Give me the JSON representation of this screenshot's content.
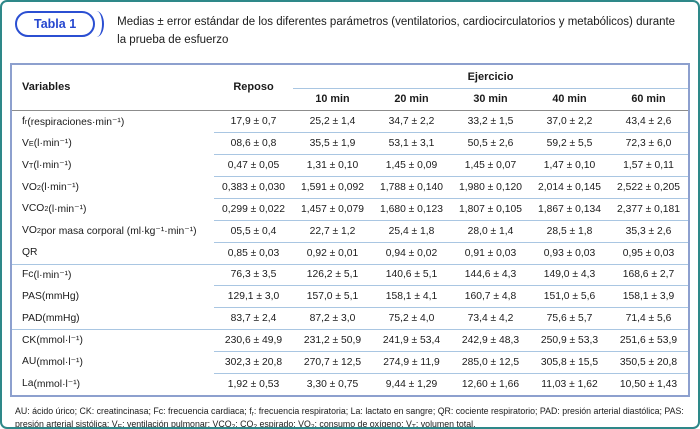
{
  "panel": {
    "badge": "Tabla 1",
    "title_line1": "Medias ± error estándar de los diferentes parámetros (ventilatorios, cardiocirculatorios y metabólicos) durante",
    "title_line2": "la prueba de esfuerzo"
  },
  "table": {
    "headers": {
      "variables": "Variables",
      "reposo": "Reposo",
      "ejercicio": "Ejercicio",
      "minutes": [
        "10 min",
        "20 min",
        "30 min",
        "40 min",
        "60 min"
      ]
    },
    "rows": [
      {
        "name": "f",
        "sub": "r",
        "rest": " (respiraciones·min⁻¹)",
        "group_start": false,
        "values": [
          "17,9 ± 0,7",
          "25,2 ± 1,4",
          "34,7 ± 2,2",
          "33,2 ± 1,5",
          "37,0 ± 2,2",
          "43,4 ± 2,6"
        ]
      },
      {
        "name": "V",
        "sub": "E",
        "rest": " (l·min⁻¹)",
        "group_start": false,
        "values": [
          "08,6 ± 0,8",
          "35,5 ± 1,9",
          "53,1 ± 3,1",
          "50,5 ± 2,6",
          "59,2 ± 5,5",
          "72,3 ± 6,0"
        ]
      },
      {
        "name": "V",
        "sub": "T",
        "rest": " (l·min⁻¹)",
        "group_start": false,
        "values": [
          "0,47 ± 0,05",
          "1,31 ± 0,10",
          "1,45 ± 0,09",
          "1,45 ± 0,07",
          "1,47 ± 0,10",
          "1,57 ± 0,11"
        ]
      },
      {
        "name": "VO",
        "sub": "2",
        "rest": " (l·min⁻¹)",
        "group_start": false,
        "values": [
          "0,383 ± 0,030",
          "1,591 ± 0,092",
          "1,788 ± 0,140",
          "1,980 ± 0,120",
          "2,014 ± 0,145",
          "2,522 ± 0,205"
        ]
      },
      {
        "name": "VCO",
        "sub": "2",
        "rest": " (l·min⁻¹)",
        "group_start": false,
        "values": [
          "0,299 ± 0,022",
          "1,457 ± 0,079",
          "1,680 ± 0,123",
          "1,807 ± 0,105",
          "1,867 ± 0,134",
          "2,377 ± 0,181"
        ]
      },
      {
        "name": "VO",
        "sub": "2",
        "rest": " por masa corporal (ml·kg⁻¹·min⁻¹)",
        "group_start": false,
        "values": [
          "05,5 ± 0,4",
          "22,7 ± 1,2",
          "25,4 ± 1,8",
          "28,0 ± 1,4",
          "28,5 ± 1,8",
          "35,3 ± 2,6"
        ]
      },
      {
        "name": "QR",
        "sub": "",
        "rest": "",
        "group_start": false,
        "values": [
          "0,85 ± 0,03",
          "0,92 ± 0,01",
          "0,94 ± 0,02",
          "0,91 ± 0,03",
          "0,93 ± 0,03",
          "0,95 ± 0,03"
        ]
      },
      {
        "name": "Fc",
        "sub": "",
        "rest": " (l·min⁻¹)",
        "group_start": true,
        "values": [
          "76,3 ± 3,5",
          "126,2 ± 5,1",
          "140,6 ± 5,1",
          "144,6 ± 4,3",
          "149,0 ± 4,3",
          "168,6 ± 2,7"
        ]
      },
      {
        "name": "PAS",
        "sub": "",
        "rest": " (mmHg)",
        "group_start": false,
        "values": [
          "129,1 ± 3,0",
          "157,0 ± 5,1",
          "158,1 ± 4,1",
          "160,7 ± 4,8",
          "151,0 ± 5,6",
          "158,1 ± 3,9"
        ]
      },
      {
        "name": "PAD",
        "sub": "",
        "rest": " (mmHg)",
        "group_start": false,
        "values": [
          "83,7 ± 2,4",
          "87,2 ± 3,0",
          "75,2 ± 4,0",
          "73,4 ± 4,2",
          "75,6 ± 5,7",
          "71,4 ± 5,6"
        ]
      },
      {
        "name": "CK",
        "sub": "",
        "rest": " (mmol·l⁻¹)",
        "group_start": true,
        "values": [
          "230,6 ± 49,9",
          "231,2 ± 50,9",
          "241,9 ± 53,4",
          "242,9 ± 48,3",
          "250,9 ± 53,3",
          "251,6 ± 53,9"
        ]
      },
      {
        "name": "AU",
        "sub": "",
        "rest": " (mmol·l⁻¹)",
        "group_start": false,
        "values": [
          "302,3 ± 20,8",
          "270,7 ± 12,5",
          "274,9 ± 11,9",
          "285,0 ± 12,5",
          "305,8 ± 15,5",
          "350,5 ± 20,8"
        ]
      },
      {
        "name": "La",
        "sub": "",
        "rest": " (mmol·l⁻¹)",
        "group_start": false,
        "values": [
          "1,92 ± 0,53",
          "3,30 ± 0,75",
          "9,44 ± 1,29",
          "12,60 ± 1,66",
          "11,03 ± 1,62",
          "10,50 ± 1,43"
        ]
      }
    ]
  },
  "footnote": {
    "segments": [
      {
        "t": "AU: ácido úrico; CK: creatincinasa; Fc: frecuencia cardiaca; f",
        "sub": false
      },
      {
        "t": "r",
        "sub": true
      },
      {
        "t": ": frecuencia respiratoria; La: lactato en sangre; QR: cociente respiratorio; PAD: presión arterial diastólica; PAS: presión arterial sistólica; V",
        "sub": false
      },
      {
        "t": "E",
        "sub": true
      },
      {
        "t": ": ventilación pulmonar; VCO",
        "sub": false
      },
      {
        "t": "2",
        "sub": true
      },
      {
        "t": ": CO",
        "sub": false
      },
      {
        "t": "2",
        "sub": true
      },
      {
        "t": " espirado; VO",
        "sub": false
      },
      {
        "t": "2",
        "sub": true
      },
      {
        "t": ": consumo de oxígeno; V",
        "sub": false
      },
      {
        "t": "T",
        "sub": true
      },
      {
        "t": ": volumen total.",
        "sub": false
      }
    ]
  },
  "colors": {
    "frame_teal": "#2e8889",
    "table_border": "#8da0ce",
    "row_line_blue": "#a9c6e2",
    "header_line_gray": "#8c8c8c",
    "accent_blue": "#2b4fd2"
  }
}
